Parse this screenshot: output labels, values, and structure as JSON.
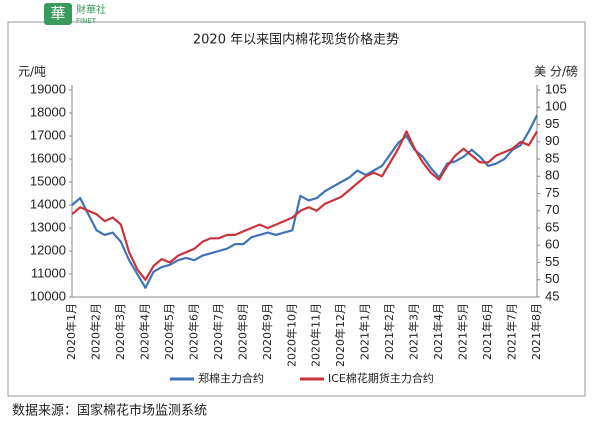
{
  "logo": {
    "mark": "華",
    "name": "財華社",
    "sub": "FINET"
  },
  "chart_data": {
    "type": "line",
    "title": "2020 年以来国内棉花现货价格走势",
    "y_label": "元/吨",
    "y2_label": "美 分/磅",
    "source": "数据来源：国家棉花市场监测系统",
    "categories": [
      "2020年1月",
      null,
      null,
      "2020年2月",
      null,
      null,
      "2020年3月",
      null,
      null,
      "2020年4月",
      null,
      null,
      "2020年5月",
      null,
      null,
      "2020年6月",
      null,
      null,
      "2020年7月",
      null,
      null,
      "2020年8月",
      null,
      null,
      "2020年9月",
      null,
      null,
      "2020年10月",
      null,
      null,
      "2020年11月",
      null,
      null,
      "2020年12月",
      null,
      null,
      "2021年1月",
      null,
      null,
      "2021年2月",
      null,
      null,
      "2021年3月",
      null,
      null,
      "2021年4月",
      null,
      null,
      "2021年5月",
      null,
      null,
      "2021年6月",
      null,
      null,
      "2021年7月",
      null,
      null,
      "2021年8月"
    ],
    "series": [
      {
        "name": "郑棉主力合约",
        "color": "#3f72b9",
        "values": [
          14000,
          14300,
          13600,
          12900,
          12700,
          12800,
          12400,
          11600,
          11000,
          10400,
          11100,
          11300,
          11400,
          11600,
          11700,
          11600,
          11800,
          11900,
          12000,
          12100,
          12300,
          12300,
          12600,
          12700,
          12800,
          12700,
          12800,
          12900,
          14400,
          14200,
          14300,
          14600,
          14800,
          15000,
          15200,
          15500,
          15300,
          15500,
          15700,
          16200,
          16700,
          17000,
          16400,
          16100,
          15600,
          15200,
          15800,
          15900,
          16100,
          16400,
          16100,
          15700,
          15800,
          16000,
          16400,
          16600,
          17200,
          17900
        ]
      },
      {
        "name": "ICE棉花期货主力合约",
        "color": "#c9343a",
        "axis": "y2",
        "values": [
          69,
          71,
          70,
          69,
          67,
          68,
          66,
          58,
          53,
          50,
          54,
          56,
          55,
          57,
          58,
          59,
          61,
          62,
          62,
          63,
          63,
          64,
          65,
          66,
          65,
          66,
          67,
          68,
          70,
          71,
          70,
          72,
          73,
          74,
          76,
          78,
          80,
          81,
          80,
          84,
          88,
          93,
          88,
          84,
          81,
          79,
          83,
          86,
          88,
          86,
          84,
          84,
          86,
          87,
          88,
          90,
          89,
          93
        ]
      }
    ],
    "ylim": [
      10000,
      19000
    ],
    "yticks": [
      10000,
      11000,
      12000,
      13000,
      14000,
      15000,
      16000,
      17000,
      18000,
      19000
    ],
    "y2lim": [
      45,
      105
    ],
    "y2ticks": [
      45,
      50,
      55,
      60,
      65,
      70,
      75,
      80,
      85,
      90,
      95,
      100,
      105
    ],
    "legend": "bottom"
  }
}
